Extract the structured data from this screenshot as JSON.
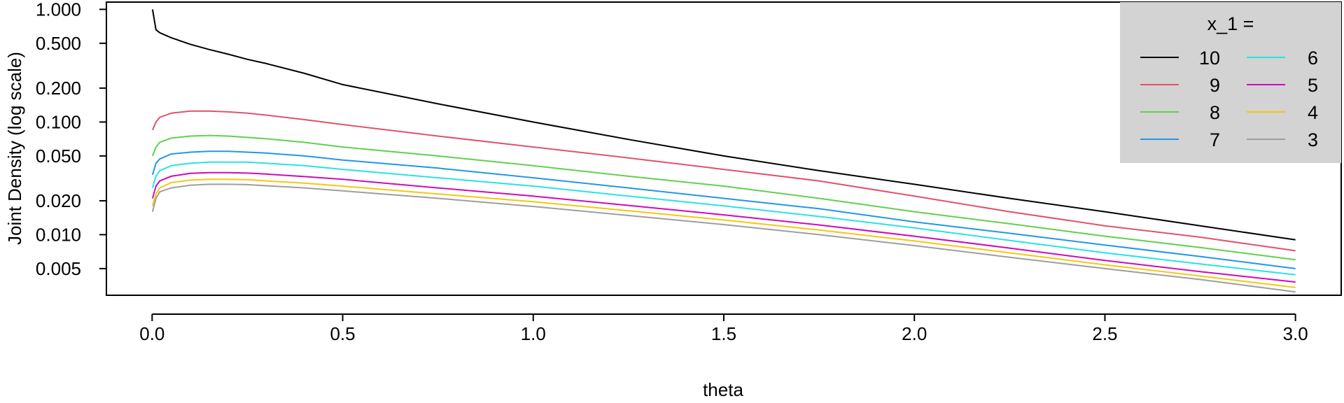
{
  "chart_data": {
    "type": "line",
    "title": "",
    "xlabel": "theta",
    "ylabel": "Joint Density (log scale)",
    "y_scale": "log",
    "xlim": [
      -0.12,
      3.12
    ],
    "ylim": [
      0.0029,
      1.16
    ],
    "x_ticks": [
      0.0,
      0.5,
      1.0,
      1.5,
      2.0,
      2.5,
      3.0
    ],
    "x_tick_labels": [
      "0.0",
      "0.5",
      "1.0",
      "1.5",
      "2.0",
      "2.5",
      "3.0"
    ],
    "y_ticks": [
      1.0,
      0.5,
      0.2,
      0.1,
      0.05,
      0.02,
      0.01,
      0.005
    ],
    "y_tick_labels": [
      "1.000",
      "0.500",
      "0.200",
      "0.100",
      "0.050",
      "0.020",
      "0.010",
      "0.005"
    ],
    "grid": false,
    "legend": {
      "title": "x_1 =",
      "position": "top-right",
      "background": "#d3d3d3",
      "columns": 2
    },
    "x": [
      0.001,
      0.01,
      0.02,
      0.05,
      0.1,
      0.15,
      0.2,
      0.25,
      0.3,
      0.4,
      0.5,
      0.75,
      1.0,
      1.25,
      1.5,
      1.75,
      2.0,
      2.25,
      2.5,
      2.75,
      3.0
    ],
    "series": [
      {
        "name": "10",
        "color": "#000000",
        "values": [
          1.0,
          0.66,
          0.62,
          0.56,
          0.49,
          0.44,
          0.4,
          0.36,
          0.33,
          0.27,
          0.215,
          0.145,
          0.1,
          0.07,
          0.05,
          0.037,
          0.028,
          0.021,
          0.016,
          0.012,
          0.009
        ]
      },
      {
        "name": "9",
        "color": "#df536b",
        "values": [
          0.085,
          0.1,
          0.11,
          0.12,
          0.125,
          0.125,
          0.123,
          0.12,
          0.115,
          0.105,
          0.095,
          0.075,
          0.06,
          0.048,
          0.038,
          0.03,
          0.022,
          0.016,
          0.012,
          0.0095,
          0.0072
        ]
      },
      {
        "name": "8",
        "color": "#61d04f",
        "values": [
          0.05,
          0.06,
          0.066,
          0.072,
          0.075,
          0.076,
          0.075,
          0.073,
          0.071,
          0.066,
          0.06,
          0.05,
          0.041,
          0.033,
          0.027,
          0.021,
          0.016,
          0.0125,
          0.0097,
          0.0077,
          0.006
        ]
      },
      {
        "name": "7",
        "color": "#2297e6",
        "values": [
          0.034,
          0.043,
          0.047,
          0.052,
          0.054,
          0.055,
          0.055,
          0.054,
          0.053,
          0.05,
          0.046,
          0.039,
          0.032,
          0.026,
          0.021,
          0.017,
          0.013,
          0.0103,
          0.0081,
          0.0064,
          0.005
        ]
      },
      {
        "name": "6",
        "color": "#28e2e5",
        "values": [
          0.026,
          0.033,
          0.037,
          0.041,
          0.043,
          0.044,
          0.044,
          0.044,
          0.043,
          0.041,
          0.038,
          0.032,
          0.027,
          0.022,
          0.018,
          0.0145,
          0.0115,
          0.0089,
          0.0069,
          0.0055,
          0.0044
        ]
      },
      {
        "name": "5",
        "color": "#cd0bbc",
        "values": [
          0.021,
          0.027,
          0.03,
          0.033,
          0.035,
          0.0355,
          0.0355,
          0.0352,
          0.0345,
          0.0328,
          0.031,
          0.026,
          0.022,
          0.0182,
          0.015,
          0.0122,
          0.0097,
          0.0076,
          0.0059,
          0.0047,
          0.0038
        ]
      },
      {
        "name": "4",
        "color": "#f5c710",
        "values": [
          0.018,
          0.023,
          0.026,
          0.029,
          0.0305,
          0.031,
          0.031,
          0.0308,
          0.03,
          0.0287,
          0.027,
          0.023,
          0.0196,
          0.0163,
          0.0135,
          0.011,
          0.0088,
          0.0069,
          0.0054,
          0.0043,
          0.0034
        ]
      },
      {
        "name": "3",
        "color": "#9e9e9e",
        "values": [
          0.016,
          0.021,
          0.024,
          0.026,
          0.0275,
          0.028,
          0.028,
          0.0278,
          0.0272,
          0.026,
          0.0245,
          0.021,
          0.0178,
          0.0148,
          0.0123,
          0.01,
          0.008,
          0.0063,
          0.005,
          0.004,
          0.0031
        ]
      }
    ]
  }
}
